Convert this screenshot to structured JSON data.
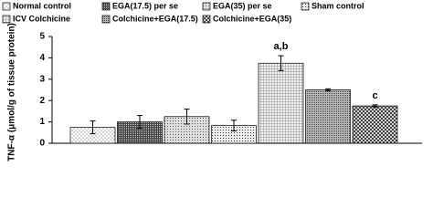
{
  "chart_data": {
    "type": "bar",
    "y_label": "TNF-α (μmol/g of tissue protein)",
    "categories": [
      "Normal control",
      "EGA(17.5) per se",
      "EGA(35) per se",
      "Sham control",
      "ICV Colchicine",
      "Colchicine+EGA(17.5)",
      "Colchicine+EGA(35)"
    ],
    "values": [
      0.75,
      1.0,
      1.25,
      0.83,
      3.75,
      2.5,
      1.75
    ],
    "errors": [
      0.3,
      0.3,
      0.35,
      0.25,
      0.35,
      0.05,
      0.05
    ],
    "annotations": [
      null,
      null,
      null,
      null,
      "a,b",
      null,
      "c"
    ],
    "ylim": [
      0,
      5
    ],
    "yticks": [
      0,
      1,
      2,
      3,
      4,
      5
    ]
  }
}
